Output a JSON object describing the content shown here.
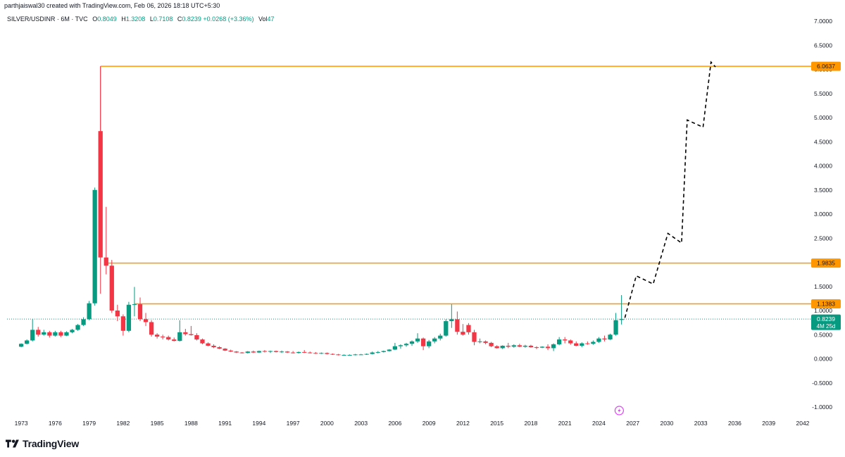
{
  "header": {
    "attribution": "parthjaiswal30 created with TradingView.com, Feb 06, 2026 18:18 UTC+5:30"
  },
  "legend": {
    "symbol": "SILVER/USDINR · 6M · TVC",
    "open_label": "O",
    "open": "0.8049",
    "high_label": "H",
    "high": "1.3208",
    "low_label": "L",
    "low": "0.7108",
    "close_label": "C",
    "close": "0.8239",
    "change": "+0.0268 (+3.36%)",
    "vol_label": "Vol",
    "vol": "47"
  },
  "brand": {
    "name": "TradingView"
  },
  "colors": {
    "up": "#089981",
    "down": "#f23645",
    "level_line": "#ff9800",
    "current_line": "#089981",
    "projection": "#000000",
    "grid_text": "#131722",
    "event_icon": "#e040fb"
  },
  "chart_data": {
    "type": "candlestick",
    "x_unit": "year",
    "interval": "6M",
    "y_ticks": [
      "7.0000",
      "6.5000",
      "6.0000",
      "5.5000",
      "5.0000",
      "4.5000",
      "4.0000",
      "3.5000",
      "3.0000",
      "2.5000",
      "2.0000",
      "1.5000",
      "1.0000",
      "0.5000",
      "0.0000",
      "-0.5000",
      "-1.0000"
    ],
    "x_ticks": [
      "1973",
      "1976",
      "1979",
      "1982",
      "1985",
      "1988",
      "1991",
      "1994",
      "1997",
      "2000",
      "2003",
      "2006",
      "2009",
      "2012",
      "2015",
      "2018",
      "2021",
      "2024",
      "2027",
      "2030",
      "2033",
      "2036",
      "2039",
      "2042"
    ],
    "xlim": [
      1971.75,
      2042.5
    ],
    "ylim": [
      -1.0,
      7.0
    ],
    "candles": [
      {
        "t": 1973.0,
        "o": 0.25,
        "h": 0.32,
        "l": 0.24,
        "c": 0.31
      },
      {
        "t": 1973.5,
        "o": 0.31,
        "h": 0.4,
        "l": 0.3,
        "c": 0.38
      },
      {
        "t": 1974.0,
        "o": 0.38,
        "h": 0.82,
        "l": 0.36,
        "c": 0.6
      },
      {
        "t": 1974.5,
        "o": 0.6,
        "h": 0.66,
        "l": 0.46,
        "c": 0.5
      },
      {
        "t": 1975.0,
        "o": 0.5,
        "h": 0.6,
        "l": 0.48,
        "c": 0.55
      },
      {
        "t": 1975.5,
        "o": 0.55,
        "h": 0.58,
        "l": 0.44,
        "c": 0.48
      },
      {
        "t": 1976.0,
        "o": 0.48,
        "h": 0.58,
        "l": 0.46,
        "c": 0.55
      },
      {
        "t": 1976.5,
        "o": 0.55,
        "h": 0.58,
        "l": 0.45,
        "c": 0.48
      },
      {
        "t": 1977.0,
        "o": 0.48,
        "h": 0.57,
        "l": 0.47,
        "c": 0.55
      },
      {
        "t": 1977.5,
        "o": 0.55,
        "h": 0.62,
        "l": 0.53,
        "c": 0.6
      },
      {
        "t": 1978.0,
        "o": 0.6,
        "h": 0.72,
        "l": 0.58,
        "c": 0.7
      },
      {
        "t": 1978.5,
        "o": 0.7,
        "h": 0.86,
        "l": 0.68,
        "c": 0.82
      },
      {
        "t": 1979.0,
        "o": 0.82,
        "h": 1.2,
        "l": 0.8,
        "c": 1.15
      },
      {
        "t": 1979.5,
        "o": 1.15,
        "h": 3.55,
        "l": 1.1,
        "c": 3.5
      },
      {
        "t": 1980.0,
        "o": 4.72,
        "h": 6.06,
        "l": 1.35,
        "c": 2.1
      },
      {
        "t": 1980.5,
        "o": 2.1,
        "h": 3.15,
        "l": 1.75,
        "c": 1.93
      },
      {
        "t": 1981.0,
        "o": 1.93,
        "h": 2.05,
        "l": 0.95,
        "c": 1.0
      },
      {
        "t": 1981.5,
        "o": 1.0,
        "h": 1.12,
        "l": 0.78,
        "c": 0.88
      },
      {
        "t": 1982.0,
        "o": 0.88,
        "h": 0.92,
        "l": 0.48,
        "c": 0.58
      },
      {
        "t": 1982.5,
        "o": 0.58,
        "h": 1.18,
        "l": 0.55,
        "c": 1.12
      },
      {
        "t": 1983.0,
        "o": 1.12,
        "h": 1.49,
        "l": 0.88,
        "c": 1.13
      },
      {
        "t": 1983.5,
        "o": 1.13,
        "h": 1.27,
        "l": 0.78,
        "c": 0.82
      },
      {
        "t": 1984.0,
        "o": 0.82,
        "h": 0.95,
        "l": 0.68,
        "c": 0.76
      },
      {
        "t": 1984.5,
        "o": 0.76,
        "h": 0.8,
        "l": 0.46,
        "c": 0.5
      },
      {
        "t": 1985.0,
        "o": 0.5,
        "h": 0.53,
        "l": 0.42,
        "c": 0.46
      },
      {
        "t": 1985.5,
        "o": 0.46,
        "h": 0.5,
        "l": 0.4,
        "c": 0.45
      },
      {
        "t": 1986.0,
        "o": 0.45,
        "h": 0.48,
        "l": 0.38,
        "c": 0.4
      },
      {
        "t": 1986.5,
        "o": 0.4,
        "h": 0.44,
        "l": 0.36,
        "c": 0.37
      },
      {
        "t": 1987.0,
        "o": 0.37,
        "h": 0.8,
        "l": 0.36,
        "c": 0.55
      },
      {
        "t": 1987.5,
        "o": 0.55,
        "h": 0.62,
        "l": 0.48,
        "c": 0.51
      },
      {
        "t": 1988.0,
        "o": 0.51,
        "h": 0.68,
        "l": 0.48,
        "c": 0.49
      },
      {
        "t": 1988.5,
        "o": 0.49,
        "h": 0.53,
        "l": 0.38,
        "c": 0.4
      },
      {
        "t": 1989.0,
        "o": 0.4,
        "h": 0.42,
        "l": 0.3,
        "c": 0.32
      },
      {
        "t": 1989.5,
        "o": 0.32,
        "h": 0.34,
        "l": 0.26,
        "c": 0.27
      },
      {
        "t": 1990.0,
        "o": 0.27,
        "h": 0.3,
        "l": 0.22,
        "c": 0.24
      },
      {
        "t": 1990.5,
        "o": 0.24,
        "h": 0.26,
        "l": 0.2,
        "c": 0.21
      },
      {
        "t": 1991.0,
        "o": 0.21,
        "h": 0.22,
        "l": 0.16,
        "c": 0.17
      },
      {
        "t": 1991.5,
        "o": 0.17,
        "h": 0.19,
        "l": 0.14,
        "c": 0.15
      },
      {
        "t": 1992.0,
        "o": 0.15,
        "h": 0.16,
        "l": 0.12,
        "c": 0.13
      },
      {
        "t": 1992.5,
        "o": 0.13,
        "h": 0.14,
        "l": 0.11,
        "c": 0.12
      },
      {
        "t": 1993.0,
        "o": 0.12,
        "h": 0.16,
        "l": 0.11,
        "c": 0.15
      },
      {
        "t": 1993.5,
        "o": 0.15,
        "h": 0.17,
        "l": 0.12,
        "c": 0.13
      },
      {
        "t": 1994.0,
        "o": 0.13,
        "h": 0.17,
        "l": 0.12,
        "c": 0.16
      },
      {
        "t": 1994.5,
        "o": 0.16,
        "h": 0.18,
        "l": 0.13,
        "c": 0.15
      },
      {
        "t": 1995.0,
        "o": 0.15,
        "h": 0.17,
        "l": 0.12,
        "c": 0.16
      },
      {
        "t": 1995.5,
        "o": 0.16,
        "h": 0.17,
        "l": 0.13,
        "c": 0.14
      },
      {
        "t": 1996.0,
        "o": 0.14,
        "h": 0.17,
        "l": 0.12,
        "c": 0.15
      },
      {
        "t": 1996.5,
        "o": 0.15,
        "h": 0.16,
        "l": 0.12,
        "c": 0.13
      },
      {
        "t": 1997.0,
        "o": 0.13,
        "h": 0.16,
        "l": 0.11,
        "c": 0.12
      },
      {
        "t": 1997.5,
        "o": 0.12,
        "h": 0.15,
        "l": 0.11,
        "c": 0.14
      },
      {
        "t": 1998.0,
        "o": 0.14,
        "h": 0.18,
        "l": 0.12,
        "c": 0.13
      },
      {
        "t": 1998.5,
        "o": 0.13,
        "h": 0.15,
        "l": 0.11,
        "c": 0.12
      },
      {
        "t": 1999.0,
        "o": 0.12,
        "h": 0.14,
        "l": 0.1,
        "c": 0.11
      },
      {
        "t": 1999.5,
        "o": 0.11,
        "h": 0.13,
        "l": 0.1,
        "c": 0.12
      },
      {
        "t": 2000.0,
        "o": 0.12,
        "h": 0.13,
        "l": 0.09,
        "c": 0.1
      },
      {
        "t": 2000.5,
        "o": 0.1,
        "h": 0.11,
        "l": 0.08,
        "c": 0.09
      },
      {
        "t": 2001.0,
        "o": 0.09,
        "h": 0.1,
        "l": 0.07,
        "c": 0.08
      },
      {
        "t": 2001.5,
        "o": 0.08,
        "h": 0.09,
        "l": 0.07,
        "c": 0.08
      },
      {
        "t": 2002.0,
        "o": 0.08,
        "h": 0.09,
        "l": 0.07,
        "c": 0.08
      },
      {
        "t": 2002.5,
        "o": 0.08,
        "h": 0.1,
        "l": 0.07,
        "c": 0.09
      },
      {
        "t": 2003.0,
        "o": 0.09,
        "h": 0.1,
        "l": 0.08,
        "c": 0.09
      },
      {
        "t": 2003.5,
        "o": 0.09,
        "h": 0.11,
        "l": 0.08,
        "c": 0.1
      },
      {
        "t": 2004.0,
        "o": 0.1,
        "h": 0.15,
        "l": 0.09,
        "c": 0.13
      },
      {
        "t": 2004.5,
        "o": 0.13,
        "h": 0.16,
        "l": 0.11,
        "c": 0.14
      },
      {
        "t": 2005.0,
        "o": 0.14,
        "h": 0.17,
        "l": 0.13,
        "c": 0.16
      },
      {
        "t": 2005.5,
        "o": 0.16,
        "h": 0.2,
        "l": 0.15,
        "c": 0.19
      },
      {
        "t": 2006.0,
        "o": 0.19,
        "h": 0.33,
        "l": 0.18,
        "c": 0.26
      },
      {
        "t": 2006.5,
        "o": 0.26,
        "h": 0.3,
        "l": 0.21,
        "c": 0.28
      },
      {
        "t": 2007.0,
        "o": 0.28,
        "h": 0.33,
        "l": 0.25,
        "c": 0.31
      },
      {
        "t": 2007.5,
        "o": 0.31,
        "h": 0.38,
        "l": 0.27,
        "c": 0.36
      },
      {
        "t": 2008.0,
        "o": 0.36,
        "h": 0.53,
        "l": 0.33,
        "c": 0.42
      },
      {
        "t": 2008.5,
        "o": 0.42,
        "h": 0.44,
        "l": 0.18,
        "c": 0.26
      },
      {
        "t": 2009.0,
        "o": 0.26,
        "h": 0.39,
        "l": 0.22,
        "c": 0.36
      },
      {
        "t": 2009.5,
        "o": 0.36,
        "h": 0.45,
        "l": 0.32,
        "c": 0.42
      },
      {
        "t": 2010.0,
        "o": 0.42,
        "h": 0.52,
        "l": 0.38,
        "c": 0.48
      },
      {
        "t": 2010.5,
        "o": 0.48,
        "h": 0.82,
        "l": 0.46,
        "c": 0.78
      },
      {
        "t": 2011.0,
        "o": 0.78,
        "h": 1.13,
        "l": 0.64,
        "c": 0.82
      },
      {
        "t": 2011.5,
        "o": 0.82,
        "h": 0.98,
        "l": 0.5,
        "c": 0.56
      },
      {
        "t": 2012.0,
        "o": 0.56,
        "h": 0.72,
        "l": 0.48,
        "c": 0.5
      },
      {
        "t": 2012.5,
        "o": 0.7,
        "h": 0.74,
        "l": 0.5,
        "c": 0.55
      },
      {
        "t": 2013.0,
        "o": 0.55,
        "h": 0.6,
        "l": 0.28,
        "c": 0.35
      },
      {
        "t": 2013.5,
        "o": 0.35,
        "h": 0.42,
        "l": 0.32,
        "c": 0.36
      },
      {
        "t": 2014.0,
        "o": 0.36,
        "h": 0.38,
        "l": 0.3,
        "c": 0.33
      },
      {
        "t": 2014.5,
        "o": 0.33,
        "h": 0.35,
        "l": 0.24,
        "c": 0.26
      },
      {
        "t": 2015.0,
        "o": 0.26,
        "h": 0.28,
        "l": 0.21,
        "c": 0.22
      },
      {
        "t": 2015.5,
        "o": 0.22,
        "h": 0.28,
        "l": 0.2,
        "c": 0.27
      },
      {
        "t": 2016.0,
        "o": 0.27,
        "h": 0.33,
        "l": 0.22,
        "c": 0.25
      },
      {
        "t": 2016.5,
        "o": 0.25,
        "h": 0.3,
        "l": 0.23,
        "c": 0.28
      },
      {
        "t": 2017.0,
        "o": 0.28,
        "h": 0.31,
        "l": 0.24,
        "c": 0.25
      },
      {
        "t": 2017.5,
        "o": 0.25,
        "h": 0.29,
        "l": 0.23,
        "c": 0.27
      },
      {
        "t": 2018.0,
        "o": 0.27,
        "h": 0.29,
        "l": 0.23,
        "c": 0.24
      },
      {
        "t": 2018.5,
        "o": 0.24,
        "h": 0.26,
        "l": 0.2,
        "c": 0.23
      },
      {
        "t": 2019.0,
        "o": 0.23,
        "h": 0.26,
        "l": 0.22,
        "c": 0.25
      },
      {
        "t": 2019.5,
        "o": 0.25,
        "h": 0.3,
        "l": 0.18,
        "c": 0.22
      },
      {
        "t": 2020.0,
        "o": 0.22,
        "h": 0.32,
        "l": 0.16,
        "c": 0.3
      },
      {
        "t": 2020.5,
        "o": 0.3,
        "h": 0.45,
        "l": 0.28,
        "c": 0.4
      },
      {
        "t": 2021.0,
        "o": 0.4,
        "h": 0.45,
        "l": 0.32,
        "c": 0.38
      },
      {
        "t": 2021.5,
        "o": 0.38,
        "h": 0.4,
        "l": 0.29,
        "c": 0.32
      },
      {
        "t": 2022.0,
        "o": 0.32,
        "h": 0.36,
        "l": 0.26,
        "c": 0.27
      },
      {
        "t": 2022.5,
        "o": 0.27,
        "h": 0.34,
        "l": 0.24,
        "c": 0.32
      },
      {
        "t": 2023.0,
        "o": 0.32,
        "h": 0.36,
        "l": 0.29,
        "c": 0.31
      },
      {
        "t": 2023.5,
        "o": 0.31,
        "h": 0.38,
        "l": 0.29,
        "c": 0.35
      },
      {
        "t": 2024.0,
        "o": 0.35,
        "h": 0.45,
        "l": 0.33,
        "c": 0.42
      },
      {
        "t": 2024.5,
        "o": 0.42,
        "h": 0.48,
        "l": 0.36,
        "c": 0.4
      },
      {
        "t": 2025.0,
        "o": 0.4,
        "h": 0.52,
        "l": 0.39,
        "c": 0.5
      },
      {
        "t": 2025.5,
        "o": 0.5,
        "h": 0.95,
        "l": 0.48,
        "c": 0.8
      },
      {
        "t": 2026.0,
        "o": 0.8049,
        "h": 1.3208,
        "l": 0.7108,
        "c": 0.8239
      }
    ],
    "levels": [
      {
        "y": 6.0637,
        "label": "6.0637",
        "from_t": 1980.0
      },
      {
        "y": 1.9835,
        "label": "1.9835",
        "from_t": 1980.5
      },
      {
        "y": 1.1383,
        "label": "1.1383",
        "from_t": 1983.0
      }
    ],
    "current_price": {
      "y": 0.8239,
      "label": "0.8239",
      "countdown": "4M 25d"
    },
    "projection_path": [
      [
        2026.3,
        0.85
      ],
      [
        2027.3,
        1.72
      ],
      [
        2028.8,
        1.55
      ],
      [
        2030.1,
        2.6
      ],
      [
        2031.3,
        2.4
      ],
      [
        2031.8,
        4.95
      ],
      [
        2033.2,
        4.8
      ],
      [
        2033.9,
        6.15
      ],
      [
        2034.3,
        6.05
      ]
    ],
    "event_marker_t": 2025.8
  }
}
